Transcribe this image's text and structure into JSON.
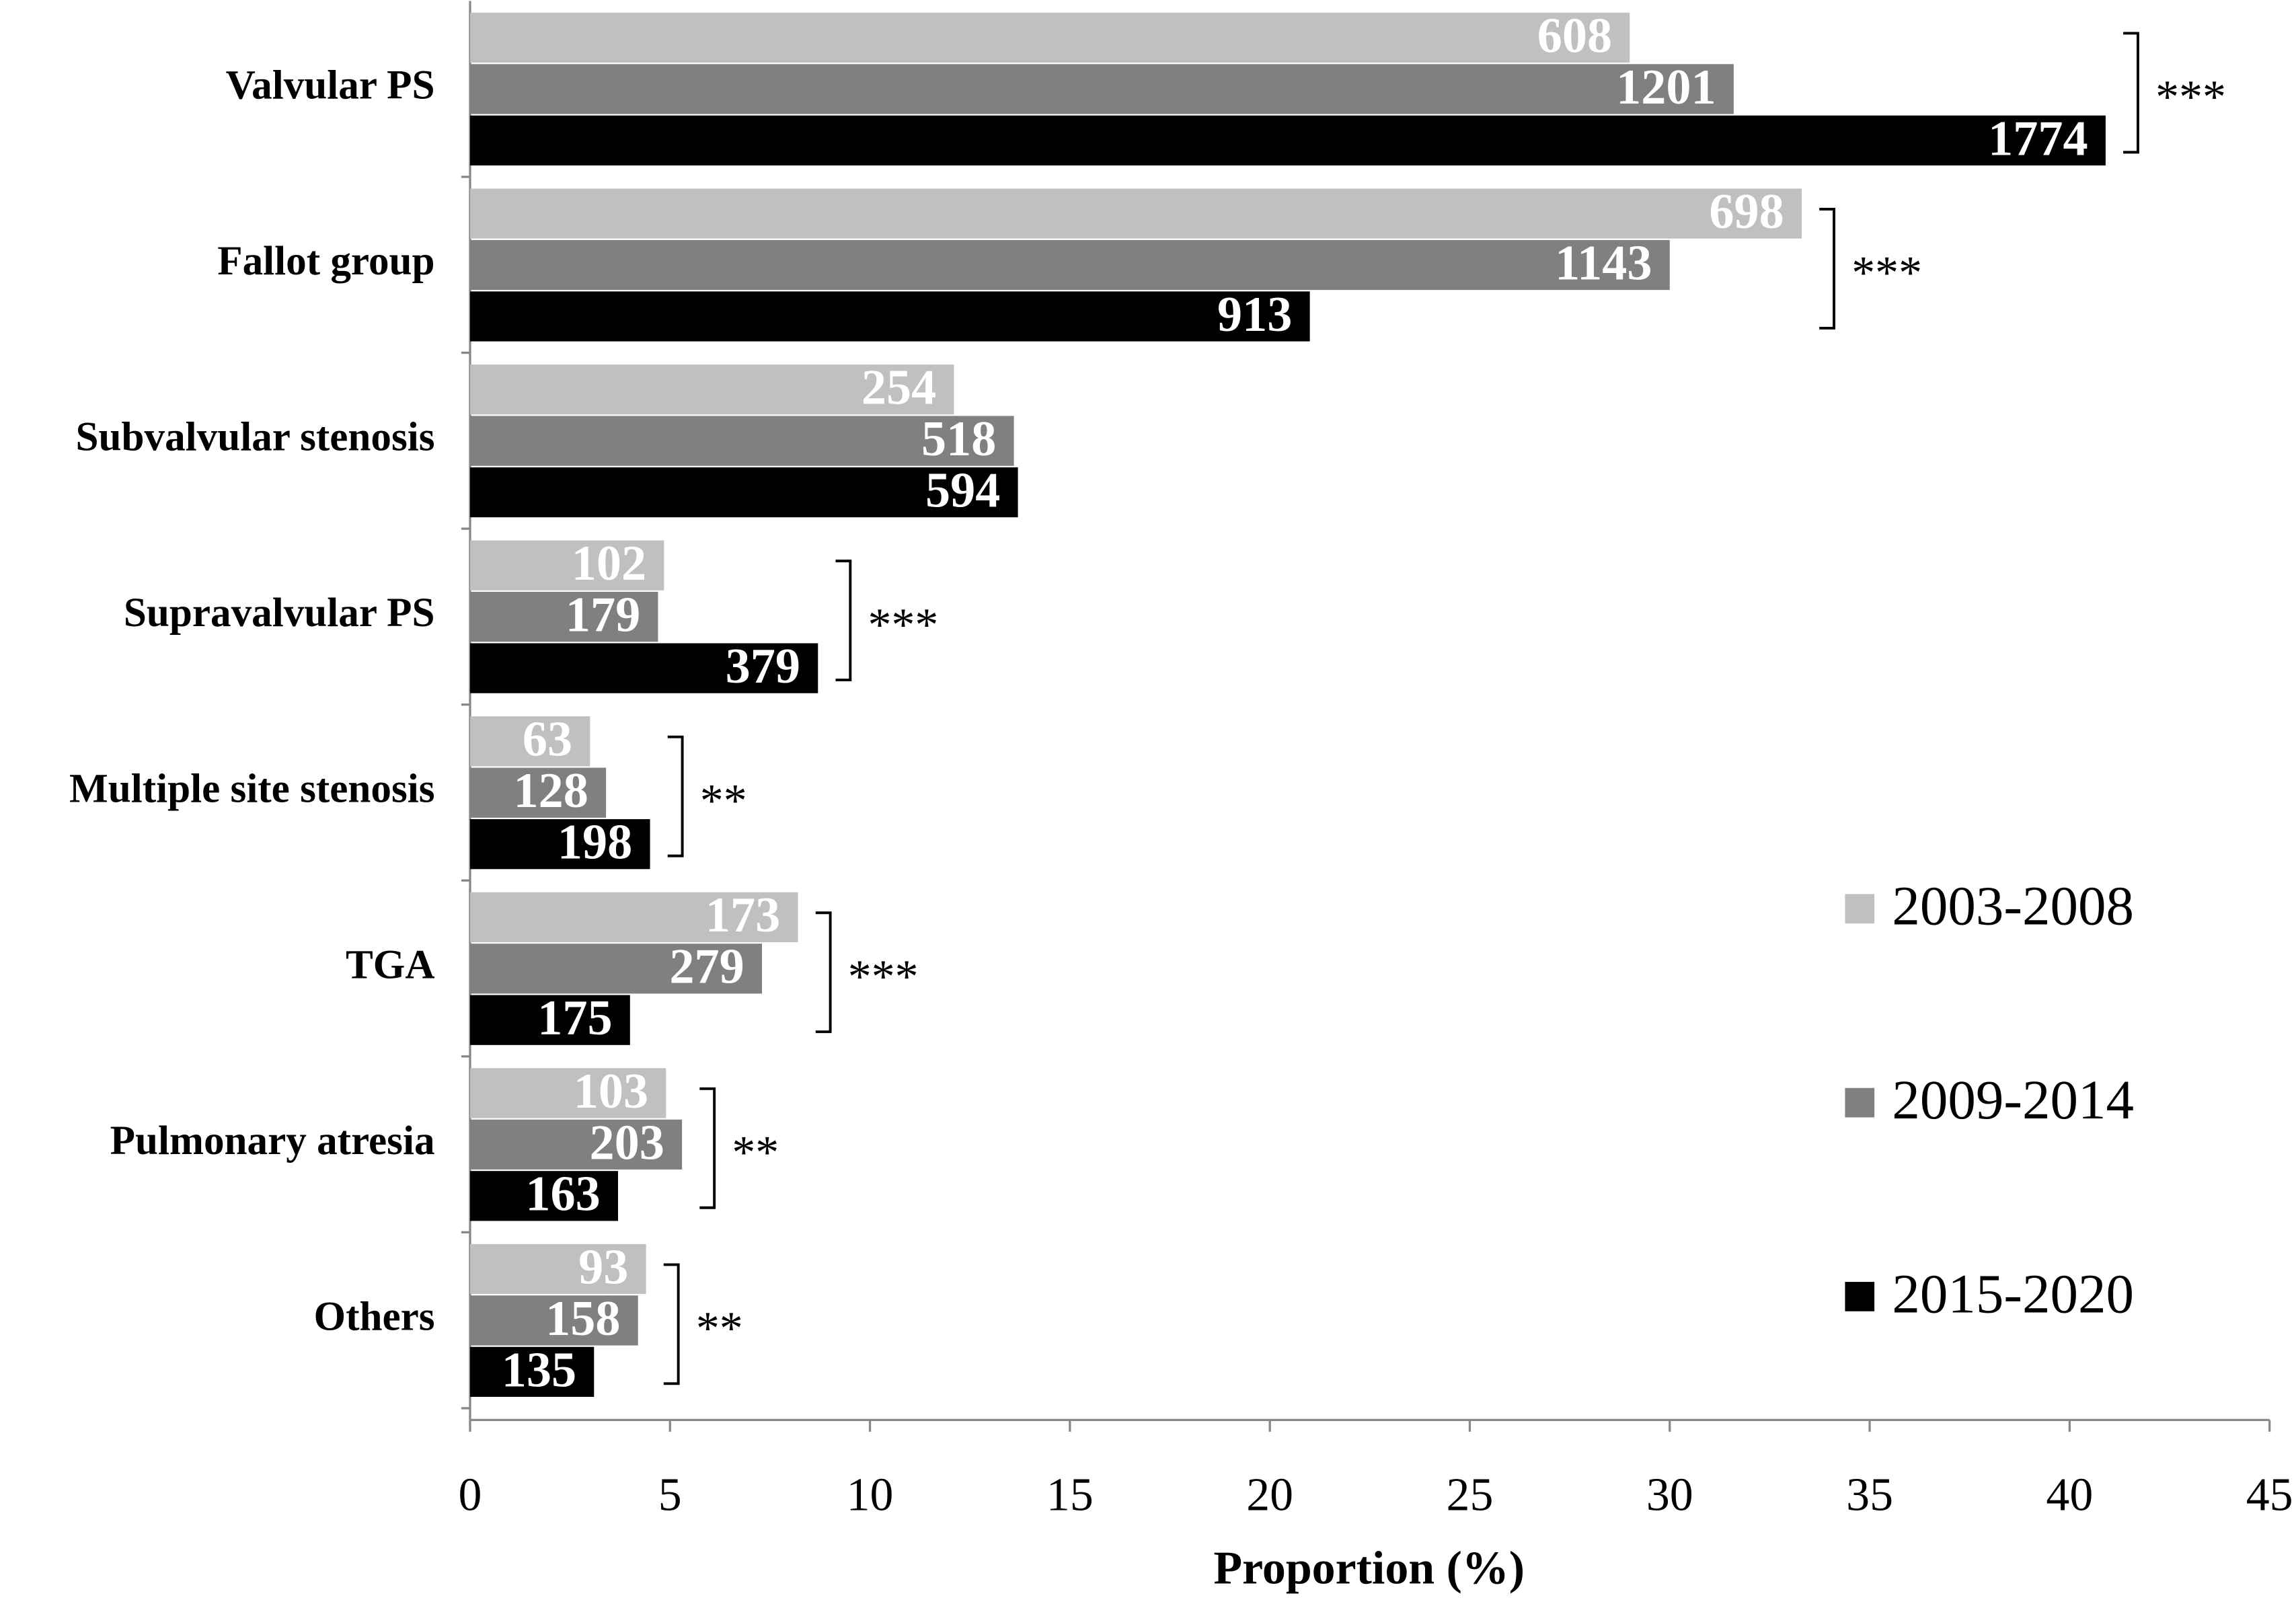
{
  "chart_data": {
    "type": "bar",
    "orientation": "horizontal",
    "x_label": "Proportion (%)",
    "categories": [
      "Valvular PS",
      "Fallot group",
      "Subvalvular stenosis",
      "Supravalvular PS",
      "Multiple site stenosis",
      "TGA",
      "Pulmonary atresia",
      "Others"
    ],
    "series": [
      {
        "name": "2003-2008",
        "color": "#c0c0c0",
        "values": [
          29.0,
          33.3,
          12.1,
          4.85,
          3.0,
          8.2,
          4.9,
          4.4
        ],
        "counts": [
          608,
          698,
          254,
          102,
          63,
          173,
          103,
          93
        ]
      },
      {
        "name": "2009-2014",
        "color": "#808080",
        "values": [
          31.6,
          30.0,
          13.6,
          4.7,
          3.4,
          7.3,
          5.3,
          4.2
        ],
        "counts": [
          1201,
          1143,
          518,
          179,
          128,
          279,
          203,
          158
        ]
      },
      {
        "name": "2015-2020",
        "color": "#000000",
        "values": [
          40.9,
          21.0,
          13.7,
          8.7,
          4.5,
          4.0,
          3.7,
          3.1
        ],
        "counts": [
          1774,
          913,
          594,
          379,
          198,
          175,
          163,
          135
        ]
      }
    ],
    "significance": [
      "***",
      "***",
      null,
      "***",
      "**",
      "***",
      "**",
      "**"
    ],
    "xlim": [
      0,
      45
    ],
    "xticks": [
      0,
      5,
      10,
      15,
      20,
      25,
      30,
      35,
      40,
      45
    ],
    "grid": false,
    "legend": "right"
  }
}
